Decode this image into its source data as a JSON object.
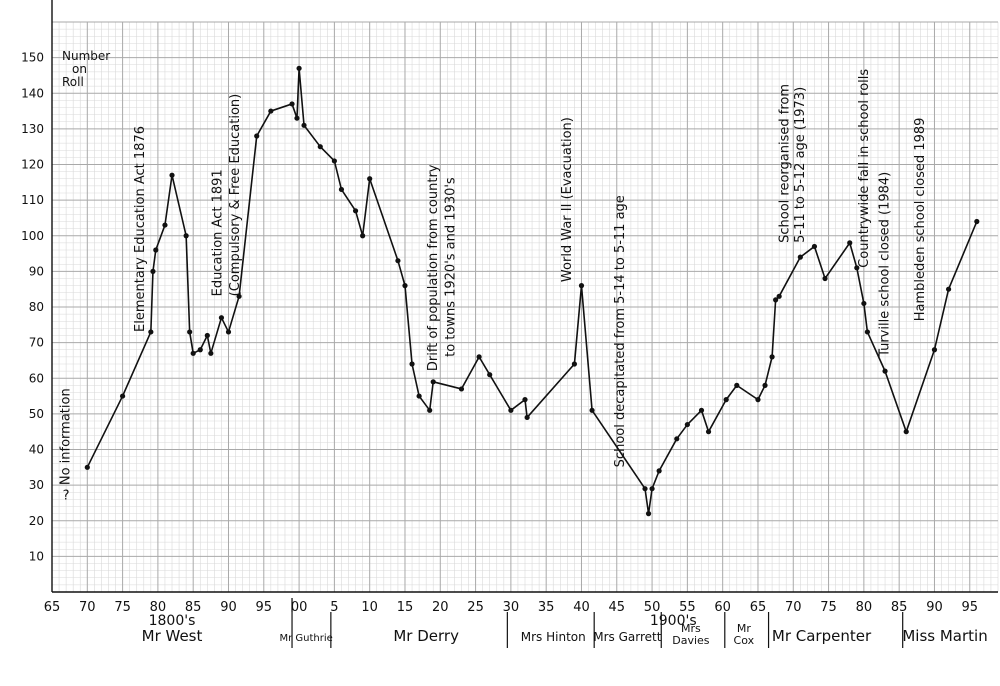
{
  "chart_data": {
    "type": "line",
    "ylabel": "Number on Roll",
    "ylim": [
      0,
      160
    ],
    "xlim": [
      1865,
      1999
    ],
    "grid": true,
    "yticks": [
      10,
      20,
      30,
      40,
      50,
      60,
      70,
      80,
      90,
      100,
      110,
      120,
      130,
      140,
      150
    ],
    "xtick_labels": [
      {
        "x": 1865,
        "label": "65"
      },
      {
        "x": 1870,
        "label": "70"
      },
      {
        "x": 1875,
        "label": "75"
      },
      {
        "x": 1880,
        "label": "80"
      },
      {
        "x": 1885,
        "label": "85"
      },
      {
        "x": 1890,
        "label": "90"
      },
      {
        "x": 1895,
        "label": "95"
      },
      {
        "x": 1900,
        "label": "00"
      },
      {
        "x": 1905,
        "label": "5"
      },
      {
        "x": 1910,
        "label": "10"
      },
      {
        "x": 1915,
        "label": "15"
      },
      {
        "x": 1920,
        "label": "20"
      },
      {
        "x": 1925,
        "label": "25"
      },
      {
        "x": 1930,
        "label": "30"
      },
      {
        "x": 1935,
        "label": "35"
      },
      {
        "x": 1940,
        "label": "40"
      },
      {
        "x": 1945,
        "label": "45"
      },
      {
        "x": 1950,
        "label": "50"
      },
      {
        "x": 1955,
        "label": "55"
      },
      {
        "x": 1960,
        "label": "60"
      },
      {
        "x": 1965,
        "label": "65"
      },
      {
        "x": 1970,
        "label": "70"
      },
      {
        "x": 1975,
        "label": "75"
      },
      {
        "x": 1980,
        "label": "80"
      },
      {
        "x": 1985,
        "label": "85"
      },
      {
        "x": 1990,
        "label": "90"
      },
      {
        "x": 1995,
        "label": "95"
      }
    ],
    "century_labels": [
      {
        "x": 1882,
        "label": "1800's"
      },
      {
        "x": 1953,
        "label": "1900's"
      }
    ],
    "series": [
      {
        "x": [
          1870,
          1875,
          1879,
          1879.3,
          1879.7,
          1881,
          1882,
          1884,
          1884.5,
          1885,
          1886,
          1887,
          1887.5,
          1889,
          1890,
          1891.5,
          1894,
          1896,
          1899,
          1899.7,
          1900,
          1900.7,
          1903,
          1905,
          1906,
          1908,
          1909,
          1910,
          1914,
          1915,
          1916,
          1917,
          1918.5,
          1919,
          1923,
          1925.5,
          1927,
          1930,
          1932,
          1932.3,
          1939,
          1940,
          1941.5,
          1949,
          1949.5,
          1950,
          1951,
          1953.5,
          1955,
          1957,
          1958,
          1960.5,
          1962,
          1965,
          1966,
          1967,
          1967.5,
          1968,
          1971,
          1973,
          1974.5,
          1978,
          1979,
          1980,
          1980.5,
          1983,
          1986,
          1990,
          1992,
          1996
        ],
        "y": [
          35,
          55,
          73,
          90,
          96,
          103,
          117,
          100,
          73,
          67,
          68,
          72,
          67,
          77,
          73,
          83,
          128,
          135,
          137,
          133,
          147,
          131,
          125,
          121,
          113,
          107,
          100,
          116,
          93,
          86,
          64,
          55,
          51,
          59,
          57,
          66,
          61,
          51,
          54,
          49,
          64,
          86,
          51,
          29,
          22,
          29,
          34,
          43,
          47,
          51,
          45,
          54,
          58,
          54,
          58,
          66,
          82,
          83,
          94,
          97,
          88,
          98,
          91,
          81,
          73,
          62,
          45,
          68,
          85,
          104
        ]
      }
    ],
    "markers": [
      {
        "x": 1882,
        "label": "Mr West"
      },
      {
        "x": 1901,
        "label": "Mr Guthrie"
      },
      {
        "x": 1918,
        "label": "Mr Derry"
      },
      {
        "x": 1936,
        "label": "Mrs Hinton"
      },
      {
        "x": 1946.5,
        "label": "Mrs Garrett"
      },
      {
        "x": 1955.5,
        "label": "Mrs Davies"
      },
      {
        "x": 1963,
        "label": "Mr Cox"
      },
      {
        "x": 1974,
        "label": "Mr Carpenter"
      },
      {
        "x": 1991.5,
        "label": "Miss Martin"
      }
    ],
    "dividers": [
      1899,
      1904.5,
      1929.5,
      1941.8,
      1951.3,
      1960.3,
      1966.5,
      1985.5
    ],
    "annotations": [
      {
        "x": 1867.5,
        "y": 30,
        "text": "No information",
        "vertical": true
      },
      {
        "x": 1866.5,
        "y": 26,
        "text": "?",
        "vertical": false
      },
      {
        "x": 1878,
        "y": 73,
        "text": "Elementary Education Act 1876",
        "vertical": true
      },
      {
        "x": 1889,
        "y": 83,
        "text": "Education Act 1891",
        "vertical": true
      },
      {
        "x": 1891.5,
        "y": 83,
        "text": "(Compulsory & Free Education)",
        "vertical": true
      },
      {
        "x": 1919.5,
        "y": 62,
        "text": "Drift of population from country",
        "vertical": true
      },
      {
        "x": 1922,
        "y": 66,
        "text": "to towns 1920's and 1930's",
        "vertical": true
      },
      {
        "x": 1938.5,
        "y": 87,
        "text": "World War II (Evacuation)",
        "vertical": true
      },
      {
        "x": 1946,
        "y": 35,
        "text": "School decapitated from 5-14 to 5-11 age",
        "vertical": true
      },
      {
        "x": 1969.3,
        "y": 98,
        "text": "School reorganised from",
        "vertical": true
      },
      {
        "x": 1971.5,
        "y": 98,
        "text": "5-11 to 5-12 age (1973)",
        "vertical": true
      },
      {
        "x": 1980.6,
        "y": 91,
        "text": "Countrywide fall in school rolls",
        "vertical": true
      },
      {
        "x": 1983.5,
        "y": 66,
        "text": "Turville school closed (1984)",
        "vertical": true
      },
      {
        "x": 1988.5,
        "y": 76,
        "text": "Hambleden school closed 1989",
        "vertical": true
      }
    ]
  }
}
